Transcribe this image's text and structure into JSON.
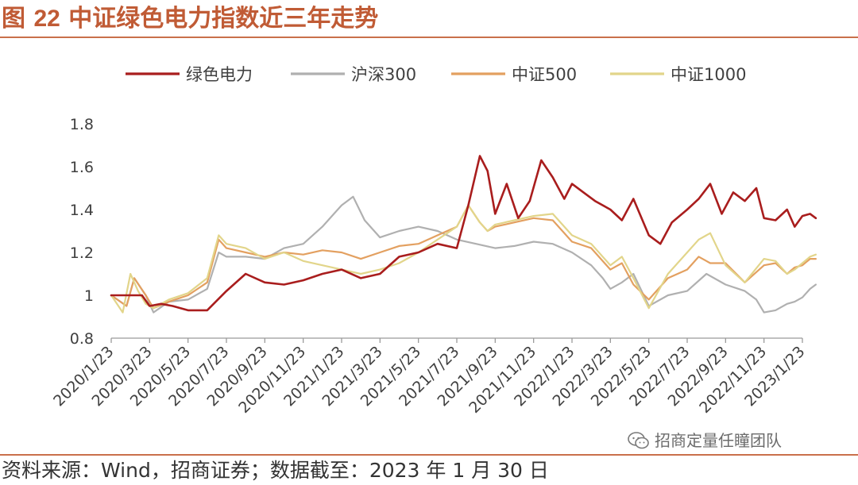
{
  "figure": {
    "label": "图",
    "number": "22",
    "title": "中证绿色电力指数近三年走势"
  },
  "source_note": "资料来源：Wind，招商证券；数据截至：2023 年 1 月 30 日",
  "watermark": {
    "text": "招商定量任瞳团队",
    "icon": "wechat-icon"
  },
  "colors": {
    "accent": "#c05b35",
    "green_power": "#a91d1d",
    "csi300": "#b0b0b0",
    "csi500": "#e3a060",
    "csi1000": "#e2d58a"
  },
  "chart_data": {
    "type": "line",
    "title": "中证绿色电力指数近三年走势",
    "xlabel": "",
    "ylabel": "",
    "ylim": [
      0.8,
      1.8
    ],
    "yticks": [
      0.8,
      1,
      1.2,
      1.4,
      1.6,
      1.8
    ],
    "ytick_labels": [
      "0.8",
      "1",
      "1.2",
      "1.4",
      "1.6",
      "1.8"
    ],
    "categories": [
      "2020/1/23",
      "2020/3/23",
      "2020/5/23",
      "2020/7/23",
      "2020/9/23",
      "2020/11/23",
      "2021/1/23",
      "2021/3/23",
      "2021/5/23",
      "2021/7/23",
      "2021/9/23",
      "2021/11/23",
      "2022/1/23",
      "2022/3/23",
      "2022/5/23",
      "2022/7/23",
      "2022/9/23",
      "2022/11/23",
      "2023/1/23"
    ],
    "legend_position": "top",
    "series": [
      {
        "name": "绿色电力",
        "color": "#a91d1d",
        "width": 2.6,
        "x": [
          0,
          0.8,
          1,
          1.3,
          1.6,
          2,
          2.5,
          3,
          3.5,
          4,
          4.5,
          5,
          5.5,
          6,
          6.5,
          7,
          7.5,
          8,
          8.5,
          9,
          9.3,
          9.6,
          9.8,
          10,
          10.3,
          10.6,
          10.9,
          11.2,
          11.5,
          11.8,
          12,
          12.3,
          12.6,
          13,
          13.3,
          13.6,
          14,
          14.3,
          14.6,
          15,
          15.3,
          15.6,
          15.9,
          16.2,
          16.5,
          16.8,
          17,
          17.3,
          17.6,
          17.8,
          18,
          18.2,
          18.35
        ],
        "values": [
          1.0,
          1.0,
          0.95,
          0.96,
          0.95,
          0.93,
          0.93,
          1.02,
          1.1,
          1.06,
          1.05,
          1.07,
          1.1,
          1.12,
          1.08,
          1.1,
          1.18,
          1.2,
          1.24,
          1.22,
          1.42,
          1.65,
          1.58,
          1.38,
          1.52,
          1.36,
          1.44,
          1.63,
          1.55,
          1.45,
          1.52,
          1.48,
          1.44,
          1.4,
          1.35,
          1.45,
          1.28,
          1.24,
          1.34,
          1.4,
          1.45,
          1.52,
          1.38,
          1.48,
          1.44,
          1.5,
          1.36,
          1.35,
          1.4,
          1.32,
          1.37,
          1.38,
          1.36
        ]
      },
      {
        "name": "沪深300",
        "color": "#b0b0b0",
        "width": 2.2,
        "x": [
          0,
          0.4,
          0.6,
          0.9,
          1.1,
          1.5,
          2,
          2.5,
          2.8,
          3,
          3.5,
          4,
          4.5,
          5,
          5.5,
          5.8,
          6,
          6.3,
          6.6,
          7,
          7.5,
          8,
          8.5,
          9,
          9.5,
          10,
          10.5,
          11,
          11.5,
          12,
          12.5,
          12.8,
          13,
          13.3,
          13.6,
          14,
          14.5,
          15,
          15.5,
          16,
          16.5,
          16.8,
          17,
          17.3,
          17.6,
          17.8,
          18,
          18.2,
          18.35
        ],
        "values": [
          1.0,
          0.95,
          1.08,
          1.0,
          0.92,
          0.97,
          0.98,
          1.03,
          1.2,
          1.18,
          1.18,
          1.17,
          1.22,
          1.24,
          1.32,
          1.38,
          1.42,
          1.46,
          1.35,
          1.27,
          1.3,
          1.32,
          1.3,
          1.26,
          1.24,
          1.22,
          1.23,
          1.25,
          1.24,
          1.2,
          1.14,
          1.08,
          1.03,
          1.06,
          1.1,
          0.95,
          1.0,
          1.02,
          1.1,
          1.05,
          1.02,
          0.98,
          0.92,
          0.93,
          0.96,
          0.97,
          0.99,
          1.03,
          1.05
        ]
      },
      {
        "name": "中证500",
        "color": "#e3a060",
        "width": 2.2,
        "x": [
          0,
          0.4,
          0.6,
          0.9,
          1.1,
          1.5,
          2,
          2.5,
          2.8,
          3,
          3.5,
          4,
          4.5,
          5,
          5.5,
          6,
          6.5,
          7,
          7.5,
          8,
          8.5,
          9,
          9.3,
          9.6,
          9.8,
          10,
          10.5,
          11,
          11.5,
          12,
          12.5,
          13,
          13.3,
          13.6,
          14,
          14.5,
          15,
          15.3,
          15.6,
          16,
          16.5,
          17,
          17.3,
          17.6,
          17.8,
          18,
          18.2,
          18.35
        ],
        "values": [
          1.0,
          0.95,
          1.08,
          1.0,
          0.94,
          0.97,
          1.0,
          1.06,
          1.26,
          1.22,
          1.2,
          1.18,
          1.2,
          1.19,
          1.21,
          1.2,
          1.17,
          1.2,
          1.23,
          1.24,
          1.28,
          1.32,
          1.42,
          1.34,
          1.3,
          1.32,
          1.34,
          1.36,
          1.35,
          1.25,
          1.22,
          1.12,
          1.15,
          1.05,
          0.98,
          1.08,
          1.12,
          1.18,
          1.15,
          1.15,
          1.06,
          1.14,
          1.15,
          1.1,
          1.13,
          1.14,
          1.17,
          1.17
        ]
      },
      {
        "name": "中证1000",
        "color": "#e2d58a",
        "width": 2.2,
        "x": [
          0,
          0.3,
          0.5,
          0.7,
          0.9,
          1.1,
          1.5,
          2,
          2.5,
          2.8,
          3,
          3.5,
          4,
          4.5,
          5,
          5.5,
          6,
          6.5,
          7,
          7.5,
          8,
          8.5,
          9,
          9.3,
          9.6,
          9.8,
          10,
          10.5,
          11,
          11.5,
          12,
          12.5,
          13,
          13.3,
          13.6,
          14,
          14.5,
          15,
          15.3,
          15.6,
          16,
          16.5,
          17,
          17.3,
          17.6,
          17.8,
          18,
          18.2,
          18.35
        ],
        "values": [
          1.0,
          0.92,
          1.1,
          1.02,
          0.96,
          0.94,
          0.98,
          1.01,
          1.08,
          1.28,
          1.24,
          1.22,
          1.17,
          1.2,
          1.16,
          1.14,
          1.12,
          1.1,
          1.12,
          1.15,
          1.2,
          1.26,
          1.32,
          1.42,
          1.34,
          1.3,
          1.33,
          1.35,
          1.37,
          1.38,
          1.28,
          1.24,
          1.14,
          1.18,
          1.08,
          0.94,
          1.1,
          1.2,
          1.26,
          1.29,
          1.14,
          1.06,
          1.17,
          1.16,
          1.1,
          1.12,
          1.15,
          1.18,
          1.19
        ]
      }
    ]
  }
}
